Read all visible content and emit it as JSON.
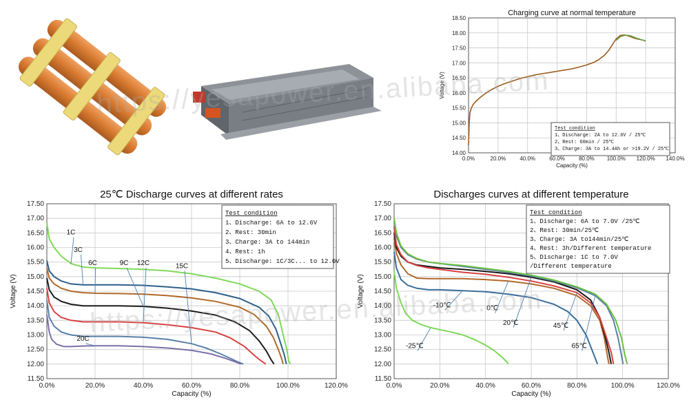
{
  "watermark": "https://yesapower.en.alibaba.com",
  "chart_data": [
    {
      "id": "charge",
      "type": "line",
      "title": "Charging curve at normal temperature",
      "xlabel": "Capacity (%)",
      "ylabel": "Voltage (V)",
      "xlim": [
        0,
        140
      ],
      "ylim": [
        14.0,
        18.5
      ],
      "xticks": [
        0,
        20,
        40,
        60,
        80,
        100,
        120,
        140
      ],
      "xtick_labels": [
        "0.0%",
        "20.0%",
        "40.0%",
        "60.0%",
        "80.0%",
        "100.0%",
        "120.0%",
        "140.0%"
      ],
      "yticks": [
        14.0,
        14.5,
        15.0,
        15.5,
        16.0,
        16.5,
        17.0,
        17.5,
        18.0,
        18.5
      ],
      "ytick_labels": [
        "14.00",
        "14.50",
        "15.00",
        "15.50",
        "16.00",
        "16.50",
        "17.00",
        "17.50",
        "18.00",
        "18.50"
      ],
      "grid": true,
      "legend_title": "Test condition",
      "legend_lines": [
        "1、Discharge: 2A to 12.6V / 25℃",
        "2、Rest: 60min / 25℃",
        "3、Charge: 3A to 14.4Ah or >19.2V / 25℃"
      ],
      "series": [
        {
          "color": "#9a5a1a",
          "x": [
            0,
            0.5,
            1,
            2,
            3,
            5,
            8,
            12,
            16,
            20,
            25,
            30,
            35,
            40,
            45,
            50,
            55,
            60,
            65,
            70,
            75,
            80,
            85,
            88,
            92,
            95,
            98,
            100,
            103,
            106,
            108,
            110,
            112,
            114,
            116,
            118,
            120
          ],
          "y": [
            14.25,
            15.05,
            15.35,
            15.5,
            15.6,
            15.72,
            15.85,
            16.0,
            16.12,
            16.22,
            16.32,
            16.4,
            16.48,
            16.54,
            16.6,
            16.64,
            16.68,
            16.72,
            16.76,
            16.8,
            16.86,
            16.93,
            17.02,
            17.1,
            17.25,
            17.42,
            17.65,
            17.8,
            17.92,
            17.93,
            17.9,
            17.87,
            17.83,
            17.8,
            17.78,
            17.76,
            17.73
          ]
        },
        {
          "color": "#6aa04a",
          "x": [
            100,
            103,
            106,
            108,
            110,
            112,
            114,
            116,
            118,
            120
          ],
          "y": [
            17.75,
            17.88,
            17.92,
            17.92,
            17.9,
            17.86,
            17.82,
            17.79,
            17.76,
            17.72
          ]
        }
      ]
    },
    {
      "id": "rates",
      "type": "line",
      "title": "25℃ Discharge curves at different rates",
      "xlabel": "Capacity (%)",
      "ylabel": "Voltage (V)",
      "xlim": [
        0,
        120
      ],
      "ylim": [
        11.5,
        17.5
      ],
      "xticks": [
        0,
        20,
        40,
        60,
        80,
        100,
        120
      ],
      "xtick_labels": [
        "0.0%",
        "20.0%",
        "40.0%",
        "60.0%",
        "80.0%",
        "100.0%",
        "120.0%"
      ],
      "yticks": [
        11.5,
        12.0,
        12.5,
        13.0,
        13.5,
        14.0,
        14.5,
        15.0,
        15.5,
        16.0,
        16.5,
        17.0,
        17.5
      ],
      "ytick_labels": [
        "11.50",
        "12.00",
        "12.50",
        "13.00",
        "13.50",
        "14.00",
        "14.50",
        "15.00",
        "15.50",
        "16.00",
        "16.50",
        "17.00",
        "17.50"
      ],
      "grid": true,
      "legend_title": "Test condition",
      "legend_lines": [
        "1、Discharge: 6A to 12.6V",
        "2、Rest: 30min",
        "3、Charge: 3A to 144min",
        "4、Rest: 1h",
        "5、Discharge: 1C/3C... to 12.0V"
      ],
      "series": [
        {
          "name": "1C",
          "color": "#7ed957",
          "x": [
            0,
            1,
            3,
            6,
            10,
            15,
            20,
            30,
            40,
            50,
            60,
            70,
            80,
            88,
            93,
            96,
            98,
            99.5,
            100.3,
            101
          ],
          "y": [
            16.85,
            16.3,
            16.0,
            15.7,
            15.45,
            15.33,
            15.3,
            15.28,
            15.25,
            15.2,
            15.1,
            14.95,
            14.75,
            14.5,
            14.2,
            13.7,
            13.0,
            12.5,
            12.1,
            12.0
          ]
        },
        {
          "name": "3C",
          "color": "#2e5f8a",
          "x": [
            0,
            1,
            3,
            6,
            10,
            15,
            20,
            30,
            40,
            50,
            60,
            70,
            80,
            88,
            92,
            95,
            97,
            98.5,
            99.3
          ],
          "y": [
            15.55,
            15.2,
            15.0,
            14.85,
            14.75,
            14.72,
            14.72,
            14.72,
            14.7,
            14.65,
            14.58,
            14.45,
            14.25,
            13.95,
            13.65,
            13.2,
            12.7,
            12.3,
            12.0
          ]
        },
        {
          "name": "6C",
          "color": "#b06828",
          "x": [
            0,
            1,
            3,
            6,
            10,
            15,
            20,
            30,
            40,
            50,
            60,
            70,
            80,
            86,
            91,
            94,
            96,
            97.3,
            98
          ],
          "y": [
            15.3,
            14.95,
            14.75,
            14.6,
            14.5,
            14.45,
            14.43,
            14.42,
            14.4,
            14.35,
            14.27,
            14.15,
            13.95,
            13.7,
            13.3,
            12.9,
            12.5,
            12.2,
            12.0
          ]
        },
        {
          "name": "9C",
          "color": "#1a1a1a",
          "x": [
            0,
            1,
            3,
            6,
            10,
            15,
            20,
            30,
            40,
            50,
            60,
            70,
            78,
            84,
            88,
            91,
            93,
            94.2
          ],
          "y": [
            14.95,
            14.55,
            14.3,
            14.15,
            14.05,
            14.0,
            14.0,
            14.0,
            13.98,
            13.92,
            13.82,
            13.68,
            13.45,
            13.15,
            12.8,
            12.45,
            12.15,
            12.0
          ]
        },
        {
          "name": "12C",
          "color": "#d94040",
          "x": [
            0,
            1,
            3,
            6,
            10,
            15,
            20,
            30,
            40,
            50,
            60,
            70,
            76,
            82,
            86,
            89,
            90.8
          ],
          "y": [
            14.6,
            14.1,
            13.8,
            13.6,
            13.5,
            13.45,
            13.45,
            13.45,
            13.42,
            13.35,
            13.25,
            13.1,
            12.9,
            12.6,
            12.3,
            12.1,
            12.0
          ]
        },
        {
          "name": "15C",
          "color": "#5a7fa8",
          "x": [
            0,
            1,
            3,
            6,
            10,
            15,
            20,
            30,
            40,
            50,
            60,
            66,
            72,
            76,
            79,
            81.5
          ],
          "y": [
            14.2,
            13.6,
            13.3,
            13.1,
            13.0,
            12.95,
            12.95,
            12.95,
            12.92,
            12.85,
            12.7,
            12.55,
            12.35,
            12.2,
            12.08,
            12.0
          ]
        },
        {
          "name": "20C",
          "color": "#7a6fa8",
          "x": [
            0,
            1,
            2,
            4,
            7,
            10,
            15,
            20,
            25,
            30,
            40,
            50,
            60,
            68,
            74,
            78,
            80.5
          ],
          "y": [
            13.7,
            13.1,
            12.85,
            12.68,
            12.6,
            12.6,
            12.62,
            12.63,
            12.63,
            12.63,
            12.6,
            12.55,
            12.47,
            12.35,
            12.2,
            12.08,
            12.0
          ]
        }
      ],
      "annotations": [
        {
          "text": "1C",
          "x": 8,
          "y": 16.6,
          "tx": 10,
          "ty": 16.4
        },
        {
          "text": "3C",
          "x": 13,
          "y": 16.0,
          "tx": 13,
          "ty": 15.8
        },
        {
          "text": "6C",
          "x": 21,
          "y": 15.55,
          "tx": 19,
          "ty": 15.35
        },
        {
          "text": "9C",
          "x": 34,
          "y": 15.55,
          "tx": 32,
          "ty": 15.35
        },
        {
          "text": "12C",
          "x": 42,
          "y": 15.55,
          "tx": 40,
          "ty": 15.35
        },
        {
          "text": "15C",
          "x": 58,
          "y": 15.45,
          "tx": 56,
          "ty": 15.25
        },
        {
          "text": "20C",
          "x": 18,
          "y": 12.95,
          "tx": 15,
          "ty": 12.75
        }
      ]
    },
    {
      "id": "temps",
      "type": "line",
      "title": "Discharges curves at different temperature",
      "xlabel": "Capacity (%)",
      "ylabel": "Voltage (V)",
      "xlim": [
        0,
        120
      ],
      "ylim": [
        11.5,
        17.5
      ],
      "xticks": [
        0,
        20,
        40,
        60,
        80,
        100,
        120
      ],
      "xtick_labels": [
        "0.0%",
        "20.0%",
        "40.0%",
        "60.0%",
        "80.0%",
        "100.0%",
        "120.0%"
      ],
      "yticks": [
        11.5,
        12.0,
        12.5,
        13.0,
        13.5,
        14.0,
        14.5,
        15.0,
        15.5,
        16.0,
        16.5,
        17.0,
        17.5
      ],
      "ytick_labels": [
        "11.50",
        "12.00",
        "12.50",
        "13.00",
        "13.50",
        "14.00",
        "14.50",
        "15.00",
        "15.50",
        "16.00",
        "16.50",
        "17.00",
        "17.50"
      ],
      "grid": true,
      "legend_title": "Test condition",
      "legend_lines": [
        "1、Discharge: 6A to 7.0V /25℃",
        "2、Rest: 30min/25℃",
        "3、Charge: 3A to144min/25℃",
        "4、Rest: 3h/Different temperature",
        "5、Discharge: 1C to 7.0V",
        "/Different temperature"
      ],
      "series": [
        {
          "name": "-25℃",
          "color": "#7ed957",
          "x": [
            0,
            1,
            3,
            5,
            8,
            12,
            16,
            20,
            25,
            30,
            35,
            40,
            44,
            47,
            49,
            50
          ],
          "y": [
            15.2,
            14.6,
            14.1,
            13.75,
            13.5,
            13.35,
            13.25,
            13.18,
            13.1,
            13.0,
            12.85,
            12.65,
            12.45,
            12.25,
            12.1,
            12.0
          ]
        },
        {
          "name": "-10℃",
          "color": "#3a6e9a",
          "x": [
            0,
            1,
            3,
            6,
            10,
            15,
            20,
            30,
            40,
            50,
            60,
            70,
            76,
            80,
            84,
            87,
            89
          ],
          "y": [
            15.85,
            15.3,
            14.9,
            14.7,
            14.6,
            14.55,
            14.55,
            14.52,
            14.48,
            14.4,
            14.28,
            14.05,
            13.8,
            13.5,
            13.0,
            12.4,
            12.0
          ]
        },
        {
          "name": "0℃",
          "color": "#b06828",
          "x": [
            0,
            1,
            3,
            6,
            10,
            15,
            20,
            30,
            40,
            50,
            60,
            70,
            80,
            86,
            90,
            92,
            93.3,
            94
          ],
          "y": [
            16.3,
            15.8,
            15.4,
            15.1,
            14.95,
            14.93,
            14.93,
            14.93,
            14.9,
            14.85,
            14.75,
            14.6,
            14.35,
            14.0,
            13.5,
            12.9,
            12.3,
            12.0
          ]
        },
        {
          "name": "20℃",
          "color": "#1a1a1a",
          "x": [
            0,
            1,
            3,
            6,
            10,
            15,
            20,
            30,
            40,
            50,
            60,
            70,
            80,
            86,
            90,
            92.5,
            94,
            95
          ],
          "y": [
            16.5,
            16.0,
            15.7,
            15.5,
            15.4,
            15.35,
            15.3,
            15.25,
            15.18,
            15.1,
            14.98,
            14.82,
            14.55,
            14.2,
            13.6,
            12.9,
            12.4,
            12.0
          ]
        },
        {
          "name": "45℃",
          "color": "#d94040",
          "x": [
            0,
            1,
            3,
            6,
            10,
            15,
            20,
            30,
            40,
            50,
            60,
            70,
            80,
            86,
            90,
            93,
            95,
            96
          ],
          "y": [
            16.7,
            16.1,
            15.75,
            15.5,
            15.38,
            15.3,
            15.25,
            15.15,
            15.08,
            14.98,
            14.85,
            14.68,
            14.45,
            14.1,
            13.6,
            12.9,
            12.4,
            12.0
          ]
        },
        {
          "name": "65℃",
          "color": "#5a7fa8",
          "x": [
            0,
            1,
            3,
            6,
            10,
            15,
            20,
            30,
            40,
            50,
            60,
            70,
            80,
            88,
            93,
            96,
            98,
            99.5,
            100.2
          ],
          "y": [
            16.9,
            16.4,
            16.0,
            15.75,
            15.6,
            15.5,
            15.45,
            15.35,
            15.25,
            15.15,
            15.02,
            14.85,
            14.62,
            14.35,
            14.0,
            13.5,
            12.9,
            12.3,
            12.0
          ]
        },
        {
          "name": "25℃",
          "color": "#6ac040",
          "x": [
            0,
            1,
            3,
            6,
            10,
            15,
            20,
            30,
            40,
            50,
            60,
            70,
            80,
            88,
            93,
            97,
            99.5,
            101,
            102
          ],
          "y": [
            17.0,
            16.5,
            16.05,
            15.78,
            15.62,
            15.5,
            15.45,
            15.38,
            15.28,
            15.18,
            15.05,
            14.88,
            14.65,
            14.4,
            14.05,
            13.5,
            12.9,
            12.3,
            12.0
          ]
        }
      ],
      "annotations": [
        {
          "text": "-10℃",
          "x": 24,
          "y": 14.35,
          "tx": 21,
          "ty": 13.9
        },
        {
          "text": "0℃",
          "x": 46,
          "y": 14.3,
          "tx": 43,
          "ty": 13.8
        },
        {
          "text": "20℃",
          "x": 54,
          "y": 13.8,
          "tx": 51,
          "ty": 13.3
        },
        {
          "text": "45℃",
          "x": 76,
          "y": 13.9,
          "tx": 73,
          "ty": 13.2
        },
        {
          "text": "65℃",
          "x": 84,
          "y": 13.3,
          "tx": 81,
          "ty": 12.5
        },
        {
          "text": "-25℃",
          "x": 13,
          "y": 13.0,
          "tx": 9,
          "ty": 12.5
        }
      ]
    }
  ]
}
